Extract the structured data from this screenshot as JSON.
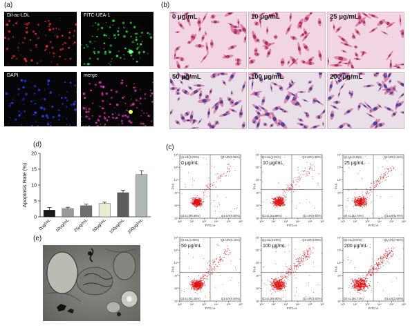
{
  "panel_a": {
    "label": "(a)",
    "images": [
      {
        "label": "Dil-ac-LDL",
        "color": "#ff2a2a"
      },
      {
        "label": "FITC-UEA-1",
        "color": "#22ff44"
      },
      {
        "label": "DAPI",
        "color": "#2244ff"
      },
      {
        "label": "merge",
        "color": "#ff33cc"
      }
    ]
  },
  "panel_b": {
    "label": "(b)",
    "images": [
      {
        "label": "0 μg/mL"
      },
      {
        "label": "10 μg/mL"
      },
      {
        "label": "25 μg/mL"
      },
      {
        "label": "50 μg/mL"
      },
      {
        "label": "100 μg/mL"
      },
      {
        "label": "200 μg/mL"
      }
    ]
  },
  "panel_c": {
    "label": "(c)",
    "plots": [
      {
        "dose": "0 μg/mL",
        "ul": "Q1-UL(2.03%)",
        "ur": "Q1-UR(0.96%)",
        "ll": "Q1-LL(95.93%)",
        "lr": "Q1-LR(0.56%)",
        "extra_spread": 0
      },
      {
        "dose": "10 μg/mL",
        "ul": "Q1-UL(4.01%)",
        "ur": "Q1-UR(1.50%)",
        "ll": "Q1-LL(93.69%)",
        "lr": "Q1-LR(0.40%)",
        "extra_spread": 0.2
      },
      {
        "dose": "25 μg/mL",
        "ul": "Q1-UL(2.25%)",
        "ur": "Q1-UR(2.25%)",
        "ll": "Q1-LL(92.73%)",
        "lr": "Q1-LR(0.76%)",
        "extra_spread": 0.3
      },
      {
        "dose": "50 μg/mL",
        "ul": "Q1-UL(1.66%)",
        "ur": "Q1-UR(3.15%)",
        "ll": "Q1-LL(91.26%)",
        "lr": "Q1-LR(0.93%)",
        "extra_spread": 0.4
      },
      {
        "dose": "100 μg/mL",
        "ul": "Q1-UL(3.69%)",
        "ur": "Q1-UR(3.99%)",
        "ll": "Q1-LL(88.60%)",
        "lr": "Q1-LR(3.92%)",
        "extra_spread": 0.8
      },
      {
        "dose": "200 μg/mL",
        "ul": "Q1-UL(2.67%)",
        "ur": "Q1-UR(7.95%)",
        "ll": "Q1-LL(86.71%)",
        "lr": "Q1-LR(2.68%)",
        "extra_spread": 1
      }
    ],
    "x_axis_label": "FITC-A",
    "y_axis_label": "PI-A",
    "ticks": [
      "10¹",
      "10²",
      "10³",
      "10⁴",
      "10⁵",
      "10⁶"
    ]
  },
  "panel_d": {
    "label": "(d)"
  },
  "panel_e": {
    "label": "(e)"
  },
  "chart_data": {
    "type": "bar",
    "title": "",
    "xlabel": "",
    "ylabel": "Apoptosis  Rate (%)",
    "categories": [
      "0μg/mL",
      "10μg/mL",
      "25μg/mL",
      "50μg/mL",
      "100μg/mL",
      "200μg/mL"
    ],
    "values": [
      2.1,
      2.6,
      3.5,
      4.2,
      7.6,
      13.3
    ],
    "errors": [
      0.8,
      0.4,
      0.5,
      0.4,
      0.8,
      1.2
    ],
    "bar_colors": [
      "#1a1a1a",
      "#9a9a9a",
      "#6e6e6e",
      "#e9ecd0",
      "#5c5c5c",
      "#b0b8b6"
    ],
    "ylim": [
      0,
      20
    ],
    "yticks": [
      0,
      5,
      10,
      15,
      20
    ],
    "grid": false
  }
}
